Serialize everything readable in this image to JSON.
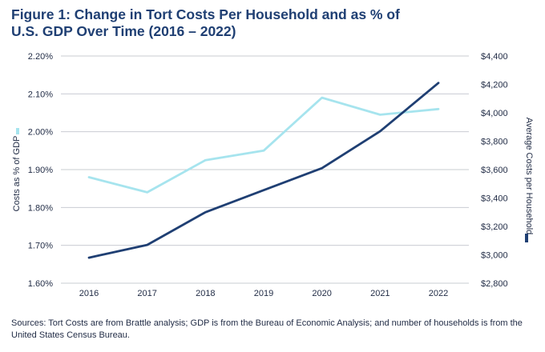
{
  "chart_data": {
    "type": "line",
    "title": "Figure 1: Change in Tort Costs Per Household and as % of\nU.S. GDP Over Time (2016 – 2022)",
    "x": [
      "2016",
      "2017",
      "2018",
      "2019",
      "2020",
      "2021",
      "2022"
    ],
    "y_left": {
      "label": "Costs as % of GDP",
      "ticks": [
        "2.20%",
        "2.10%",
        "2.00%",
        "1.90%",
        "1.80%",
        "1.70%",
        "1.60%"
      ],
      "min": 1.6,
      "max": 2.2
    },
    "y_right": {
      "label": "Average Costs per Household",
      "ticks": [
        "$4,400",
        "$4,200",
        "$4,000",
        "$3,800",
        "$3,600",
        "$3,400",
        "$3,200",
        "$3,000",
        "$2,800"
      ],
      "min": 2800,
      "max": 4400
    },
    "series": [
      {
        "axis": "left",
        "color": "#a6e4ee",
        "values": [
          1.88,
          1.84,
          1.925,
          1.95,
          2.09,
          2.045,
          2.06
        ]
      },
      {
        "axis": "right",
        "color": "#1f3f73",
        "values": [
          2980,
          3070,
          3300,
          3455,
          3610,
          3870,
          4210
        ]
      }
    ],
    "grid": true
  },
  "source": "Sources: Tort Costs are from Brattle analysis; GDP is from the Bureau of Economic Analysis; and number of households is from the United States Census Bureau."
}
